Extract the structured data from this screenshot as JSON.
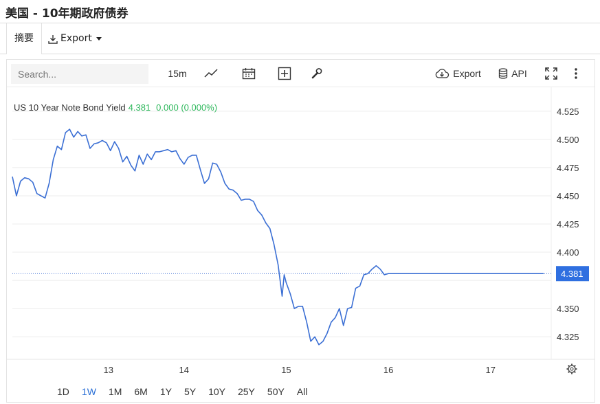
{
  "page": {
    "title": "美国 - 10年期政府债券"
  },
  "tabs": {
    "summary": "摘要",
    "export": "Export"
  },
  "toolbar": {
    "search_placeholder": "Search...",
    "interval": "15m",
    "export": "Export",
    "api": "API"
  },
  "legend": {
    "name": "US 10 Year Note Bond Yield",
    "value": "4.381",
    "change": "0.000 (0.000%)"
  },
  "ranges": [
    "1D",
    "1W",
    "1M",
    "6M",
    "1Y",
    "5Y",
    "10Y",
    "25Y",
    "50Y",
    "All"
  ],
  "active_range": "1W",
  "colors": {
    "line": "#3b6fd4",
    "last_badge": "#2f6fe0",
    "positive": "#2eb85c",
    "grid": "#ececec"
  },
  "chart_data": {
    "type": "line",
    "title": "",
    "xlabel": "",
    "ylabel": "",
    "ylim": [
      4.305,
      4.545
    ],
    "yticks": [
      4.325,
      4.35,
      4.375,
      4.4,
      4.425,
      4.45,
      4.475,
      4.5,
      4.525
    ],
    "ytick_labels": [
      "4.325",
      "4.350",
      "",
      "4.400",
      "4.425",
      "4.450",
      "4.475",
      "4.500",
      "4.525"
    ],
    "xlim": [
      12.0,
      17.28
    ],
    "xticks": [
      12.94,
      13.68,
      14.68,
      15.68,
      16.68
    ],
    "xtick_labels": [
      "13",
      "14",
      "15",
      "16",
      "17"
    ],
    "last_value": 4.381,
    "last_label": "4.381",
    "grid": true,
    "series": [
      {
        "name": "US 10 Year Note Bond Yield",
        "x": [
          12.0,
          12.04,
          12.08,
          12.12,
          12.16,
          12.2,
          12.24,
          12.28,
          12.32,
          12.36,
          12.4,
          12.44,
          12.48,
          12.52,
          12.56,
          12.6,
          12.64,
          12.68,
          12.72,
          12.76,
          12.8,
          12.84,
          12.88,
          12.92,
          12.96,
          13.0,
          13.04,
          13.08,
          13.12,
          13.16,
          13.2,
          13.24,
          13.28,
          13.32,
          13.36,
          13.4,
          13.44,
          13.48,
          13.52,
          13.56,
          13.6,
          13.64,
          13.68,
          13.72,
          13.76,
          13.8,
          13.84,
          13.88,
          13.92,
          13.96,
          14.0,
          14.04,
          14.08,
          14.12,
          14.16,
          14.2,
          14.24,
          14.28,
          14.32,
          14.36,
          14.4,
          14.44,
          14.48,
          14.52,
          14.56,
          14.6,
          14.64,
          14.66,
          14.68,
          14.72,
          14.76,
          14.8,
          14.84,
          14.88,
          14.92,
          14.96,
          15.0,
          15.04,
          15.08,
          15.12,
          15.16,
          15.2,
          15.24,
          15.28,
          15.32,
          15.36,
          15.4,
          15.44,
          15.48,
          15.52,
          15.56,
          15.6,
          15.64,
          15.68,
          15.72,
          15.76,
          15.8,
          15.84,
          15.88,
          15.92,
          15.96,
          16.0,
          16.04,
          16.08,
          16.12,
          16.16,
          16.2,
          16.24,
          16.28,
          16.32,
          16.36,
          16.4,
          16.44,
          16.48,
          16.52,
          16.56,
          16.6,
          16.64,
          16.68,
          16.72,
          16.76,
          16.8,
          16.84,
          16.88,
          16.92,
          16.96,
          17.0,
          17.04,
          17.08,
          17.12,
          17.16,
          17.2
        ],
        "values": [
          4.467,
          4.45,
          4.463,
          4.466,
          4.465,
          4.462,
          4.452,
          4.45,
          4.448,
          4.461,
          4.482,
          4.494,
          4.491,
          4.506,
          4.509,
          4.502,
          4.507,
          4.503,
          4.504,
          4.492,
          4.496,
          4.497,
          4.499,
          4.497,
          4.49,
          4.498,
          4.492,
          4.48,
          4.485,
          4.477,
          4.472,
          4.486,
          4.478,
          4.487,
          4.482,
          4.489,
          4.489,
          4.49,
          4.491,
          4.489,
          4.49,
          4.483,
          4.478,
          4.484,
          4.486,
          4.486,
          4.473,
          4.461,
          4.465,
          4.479,
          4.478,
          4.471,
          4.461,
          4.456,
          4.455,
          4.452,
          4.446,
          4.447,
          4.447,
          4.445,
          4.437,
          4.433,
          4.426,
          4.421,
          4.407,
          4.389,
          4.361,
          4.38,
          4.373,
          4.363,
          4.35,
          4.352,
          4.352,
          4.338,
          4.321,
          4.325,
          4.318,
          4.321,
          4.328,
          4.338,
          4.342,
          4.35,
          4.335,
          4.35,
          4.351,
          4.368,
          4.37,
          4.38,
          4.381,
          4.385,
          4.388,
          4.385,
          4.38,
          4.381,
          4.381,
          4.381,
          4.381,
          4.381,
          4.381,
          4.381,
          4.381,
          4.381,
          4.381,
          4.381,
          4.381,
          4.381,
          4.381,
          4.381,
          4.381,
          4.381,
          4.381,
          4.381,
          4.381,
          4.381,
          4.381,
          4.381,
          4.381,
          4.381,
          4.381,
          4.381,
          4.381,
          4.381,
          4.381,
          4.381,
          4.381,
          4.381,
          4.381,
          4.381,
          4.381,
          4.381,
          4.381,
          4.381
        ]
      }
    ]
  }
}
